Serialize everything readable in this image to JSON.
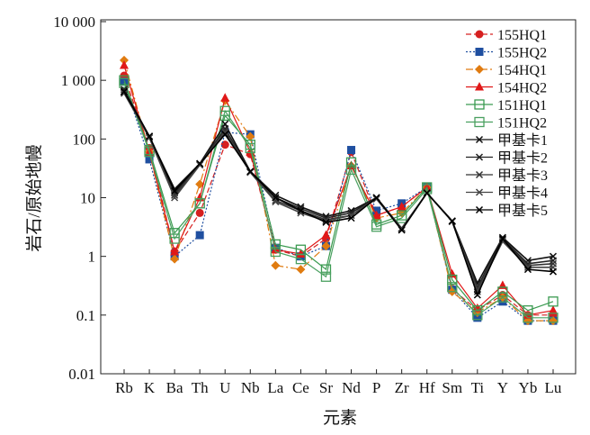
{
  "chart_data": {
    "type": "line",
    "xlabel": "元素",
    "ylabel": "岩石/原始地幔",
    "yscale": "log",
    "ylim": [
      0.01,
      10000
    ],
    "yticks": [
      "0.01",
      "0.1",
      "1",
      "10",
      "100",
      "1 000",
      "10 000"
    ],
    "grid": false,
    "legend_position": "top-right",
    "categories": [
      "Rb",
      "K",
      "Ba",
      "Th",
      "U",
      "Nb",
      "La",
      "Ce",
      "Sr",
      "Nd",
      "P",
      "Zr",
      "Hf",
      "Sm",
      "Ti",
      "Y",
      "Yb",
      "Lu"
    ],
    "series": [
      {
        "name": "155HQ1",
        "color": "#d62020",
        "marker": "circle",
        "dash": "6,3",
        "values": [
          1200,
          70,
          1.2,
          5.5,
          80,
          55,
          1.3,
          1.0,
          2.0,
          60,
          5,
          7,
          15,
          0.28,
          0.12,
          0.22,
          0.1,
          0.1
        ]
      },
      {
        "name": "155HQ2",
        "color": "#1f4fa0",
        "marker": "square",
        "dash": "2,2",
        "values": [
          950,
          45,
          1.0,
          2.3,
          130,
          120,
          1.4,
          1.0,
          1.5,
          65,
          6,
          8,
          15,
          0.27,
          0.09,
          0.17,
          0.08,
          0.08
        ]
      },
      {
        "name": "154HQ1",
        "color": "#e07b10",
        "marker": "diamond",
        "dash": "8,3,2,3",
        "values": [
          2200,
          60,
          0.9,
          17,
          450,
          110,
          0.7,
          0.6,
          1.5,
          35,
          4.5,
          5.5,
          15,
          0.25,
          0.11,
          0.2,
          0.08,
          0.08
        ]
      },
      {
        "name": "154HQ2",
        "color": "#e01818",
        "marker": "triangle",
        "dash": "",
        "values": [
          1800,
          60,
          1.2,
          10,
          500,
          60,
          1.3,
          1.1,
          2.3,
          35,
          5,
          7,
          15,
          0.5,
          0.13,
          0.32,
          0.1,
          0.12
        ]
      },
      {
        "name": "151HQ1",
        "color": "#3a9a50",
        "marker": "open-square",
        "dash": "",
        "values": [
          1000,
          65,
          2.5,
          8,
          250,
          80,
          1.6,
          1.3,
          0.6,
          40,
          3.5,
          5,
          15,
          0.4,
          0.12,
          0.25,
          0.12,
          0.17
        ]
      },
      {
        "name": "151HQ2",
        "color": "#4aa060",
        "marker": "open-square",
        "dash": "",
        "values": [
          900,
          60,
          2.0,
          8,
          300,
          70,
          1.2,
          0.9,
          0.45,
          30,
          3.2,
          4.5,
          14,
          0.3,
          0.1,
          0.2,
          0.09,
          0.09
        ]
      },
      {
        "name": "甲基卡1",
        "color": "#111111",
        "marker": "x",
        "dash": "",
        "values": [
          650,
          110,
          14,
          38,
          180,
          28,
          11,
          7,
          4.8,
          6,
          10,
          3,
          12,
          4,
          0.35,
          2.1,
          0.85,
          1.0
        ]
      },
      {
        "name": "甲基卡2",
        "color": "#222222",
        "marker": "x",
        "dash": "",
        "values": [
          700,
          110,
          12,
          38,
          150,
          28,
          10,
          6.5,
          4.5,
          5.5,
          10,
          3,
          12,
          4,
          0.3,
          2.0,
          0.75,
          0.85
        ]
      },
      {
        "name": "甲基卡3",
        "color": "#333333",
        "marker": "x",
        "dash": "",
        "values": [
          620,
          105,
          11,
          37,
          140,
          27,
          9,
          6,
          4.2,
          5,
          10,
          3,
          12,
          4,
          0.28,
          1.9,
          0.7,
          0.75
        ]
      },
      {
        "name": "甲基卡4",
        "color": "#444444",
        "marker": "x",
        "dash": "",
        "values": [
          600,
          105,
          10,
          36,
          130,
          27,
          8.5,
          5.5,
          4.0,
          5,
          9.5,
          2.9,
          12,
          3.9,
          0.25,
          1.8,
          0.65,
          0.65
        ]
      },
      {
        "name": "甲基卡5",
        "color": "#000000",
        "marker": "x",
        "dash": "",
        "values": [
          640,
          112,
          13,
          38,
          120,
          28,
          10,
          6,
          3.8,
          4.5,
          10,
          2.8,
          12,
          4,
          0.22,
          2.0,
          0.6,
          0.55
        ]
      }
    ]
  }
}
